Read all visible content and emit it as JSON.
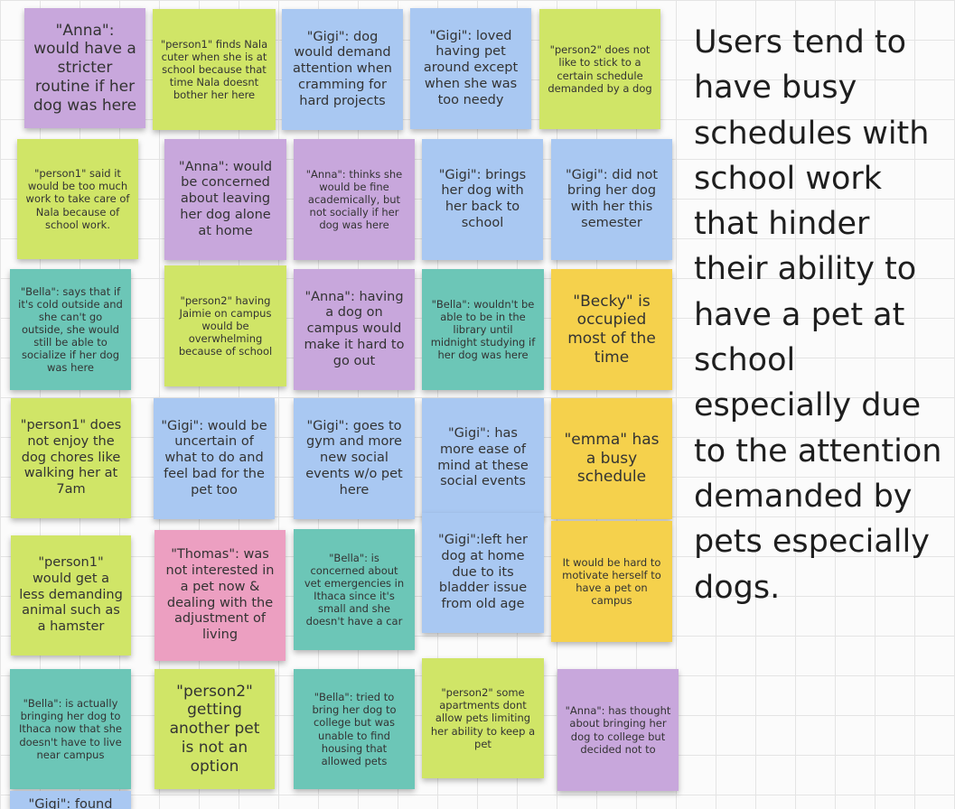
{
  "notes": {
    "n1": "\"Anna\": would have a stricter routine if her dog was here",
    "n2": "\"person1\" finds Nala cuter when she is at school because that time Nala doesnt bother her here",
    "n3": "\"Gigi\": dog would demand attention when cramming for hard projects",
    "n4": "\"Gigi\": loved having pet around except when she was too needy",
    "n5": "\"person2\" does not like to stick to a certain schedule demanded by a dog",
    "n6": "\"person1\" said it would be too much work to take care of Nala because of school work.",
    "n7": "\"Anna\": would be concerned about leaving her dog alone at home",
    "n8": "\"Anna\": thinks she would be fine academically, but not socially if her dog was here",
    "n9": "\"Gigi\": brings her dog with her back to school",
    "n10": "\"Gigi\": did not bring her dog with her this semester",
    "n11": "\"Bella\": says that if it's cold outside and she can't go outside, she would still be able to socialize if her dog was here",
    "n12": "\"person2\" having Jaimie on campus would be overwhelming because of school",
    "n13": "\"Anna\": having a dog on campus would make it hard to go out",
    "n14": "\"Bella\": wouldn't be able to be in the library until midnight studying if her dog was here",
    "n15": "\"Becky\" is occupied most of the time",
    "n16": "\"person1\" does not enjoy the dog chores like walking her at 7am",
    "n17": "\"Gigi\": would be uncertain of what to do and feel bad for the pet too",
    "n18": "\"Gigi\": goes to gym and more new social events w/o pet here",
    "n19": "\"Gigi\": has more ease of mind at these social events",
    "n20": "\"emma\" has a busy schedule",
    "n21": "\"person1\" would get a less demanding animal such as a hamster",
    "n22": "\"Thomas\": was not interested in a pet now & dealing with the adjustment of living",
    "n23": "\"Bella\": is concerned about vet emergencies in Ithaca since it's small and she doesn't have a car",
    "n24": "\"Gigi\":left her dog at home due to its bladder issue from old age",
    "n25": "It would be hard to motivate herself to have a pet on campus",
    "n26": "\"Bella\": is actually bringing her dog to Ithaca now that she doesn't have to live near campus",
    "n27": "\"person2\" getting another pet is not an option",
    "n28": "\"Bella\": tried to bring her dog to college but was unable to find housing that allowed pets",
    "n29": "\"person2\" some apartments dont allow pets limiting her ability to keep a pet",
    "n30": "\"Anna\": has thought about bringing her dog to college but decided not to",
    "n31": "\"Gigi\": found"
  },
  "colors": {
    "purple": "#c8a7dc",
    "green": "#d0e567",
    "blue": "#a9c8f2",
    "teal": "#6cc6b7",
    "yellow": "#f5d14c",
    "pink": "#ec9fc1"
  },
  "insight": "Users tend to have busy schedules with school work that hinder their ability to have a pet at school especially due to the attention demanded by pets especially dogs."
}
